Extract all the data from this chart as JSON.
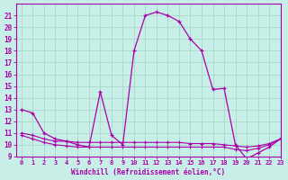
{
  "xlabel": "Windchill (Refroidissement éolien,°C)",
  "background_color": "#c8eee8",
  "grid_color": "#a8d8cc",
  "line_color": "#aa00aa",
  "x_main": [
    0,
    1,
    2,
    3,
    4,
    5,
    6,
    7,
    8,
    9,
    10,
    11,
    12,
    13,
    14,
    15,
    16,
    17,
    18,
    19,
    20,
    21,
    22,
    23
  ],
  "y_main": [
    13.0,
    12.7,
    11.0,
    10.5,
    10.3,
    10.0,
    9.8,
    14.5,
    10.8,
    10.0,
    18.0,
    21.0,
    21.3,
    21.0,
    20.5,
    19.0,
    18.0,
    14.7,
    14.8,
    10.0,
    8.8,
    9.3,
    9.8,
    10.5
  ],
  "x_sec1": [
    0,
    1,
    2,
    3,
    4,
    5,
    6,
    7,
    8,
    9,
    10,
    11,
    12,
    13,
    14,
    15,
    16,
    17,
    18,
    19,
    20,
    21,
    22,
    23
  ],
  "y_sec1": [
    11.0,
    10.8,
    10.5,
    10.3,
    10.3,
    10.2,
    10.2,
    10.2,
    10.2,
    10.2,
    10.2,
    10.2,
    10.2,
    10.2,
    10.2,
    10.1,
    10.1,
    10.1,
    10.0,
    9.9,
    9.8,
    9.9,
    10.1,
    10.5
  ],
  "x_sec2": [
    0,
    1,
    2,
    3,
    4,
    5,
    6,
    7,
    8,
    9,
    10,
    11,
    12,
    13,
    14,
    15,
    16,
    17,
    18,
    19,
    20,
    21,
    22,
    23
  ],
  "y_sec2": [
    10.8,
    10.5,
    10.2,
    10.0,
    9.9,
    9.8,
    9.8,
    9.8,
    9.8,
    9.8,
    9.8,
    9.8,
    9.8,
    9.8,
    9.8,
    9.8,
    9.8,
    9.8,
    9.8,
    9.6,
    9.5,
    9.7,
    10.0,
    10.5
  ],
  "ylim": [
    9,
    22
  ],
  "xlim": [
    -0.5,
    23
  ],
  "yticks": [
    9,
    10,
    11,
    12,
    13,
    14,
    15,
    16,
    17,
    18,
    19,
    20,
    21
  ],
  "xticks": [
    0,
    1,
    2,
    3,
    4,
    5,
    6,
    7,
    8,
    9,
    10,
    11,
    12,
    13,
    14,
    15,
    16,
    17,
    18,
    19,
    20,
    21,
    22,
    23
  ]
}
